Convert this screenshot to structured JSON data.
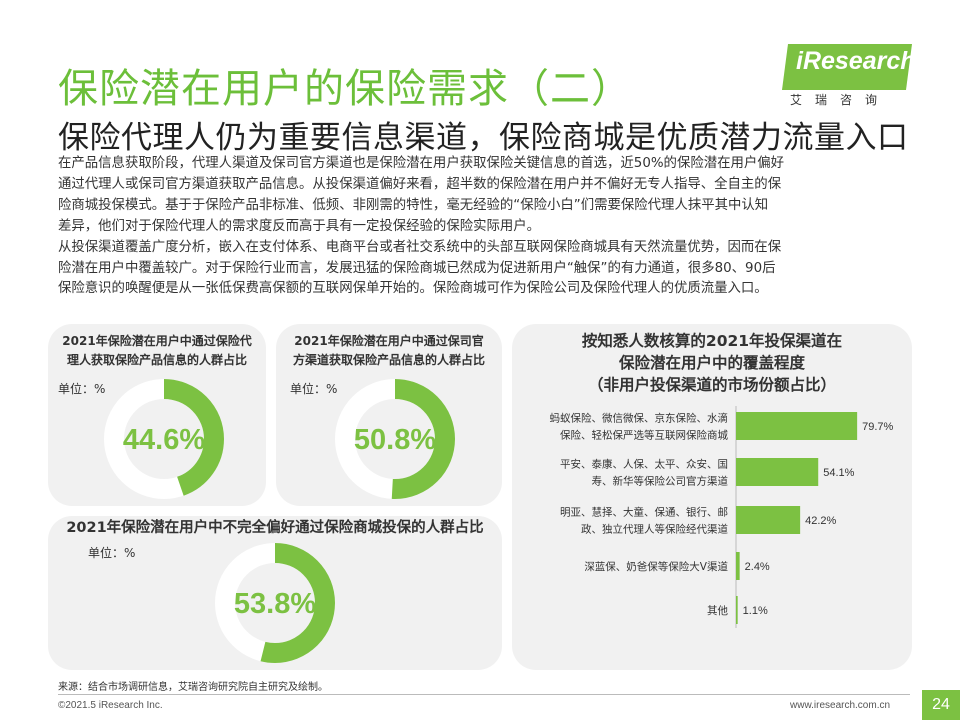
{
  "header": {
    "title": "保险潜在用户的保险需求（二）",
    "subtitle": "保险代理人仍为重要信息渠道，保险商城是优质潜力流量入口"
  },
  "logo": {
    "text": "iResearch",
    "cn": "艾瑞咨询"
  },
  "body": {
    "lines": [
      "在产品信息获取阶段，代理人渠道及保司官方渠道也是保险潜在用户获取保险关键信息的首选，近50%的保险潜在用户偏好",
      "通过代理人或保司官方渠道获取产品信息。从投保渠道偏好来看，超半数的保险潜在用户并不偏好无专人指导、全自主的保",
      "险商城投保模式。基于于保险产品非标准、低频、非刚需的特性，毫无经验的“保险小白”们需要保险代理人抹平其中认知",
      "差异，他们对于保险代理人的需求度反而高于具有一定投保经验的保险实际用户。",
      "从投保渠道覆盖广度分析，嵌入在支付体系、电商平台或者社交系统中的头部互联网保险商城具有天然流量优势，因而在保",
      "险潜在用户中覆盖较广。对于保险行业而言，发展迅猛的保险商城已然成为促进新用户“触保”的有力通道，很多80、90后",
      "保险意识的唤醒便是从一张低保费高保额的互联网保单开始的。保险商城可作为保险公司及保险代理人的优质流量入口。"
    ]
  },
  "donuts": [
    {
      "title_lines": [
        "2021年保险潜在用户中通过保险代",
        "理人获取保险产品信息的人群占比"
      ],
      "unit": "单位：%",
      "value": 44.6,
      "label": "44.6%"
    },
    {
      "title_lines": [
        "2021年保险潜在用户中通过保司官",
        "方渠道获取保险产品信息的人群占比"
      ],
      "unit": "单位：%",
      "value": 50.8,
      "label": "50.8%"
    },
    {
      "title_lines": [
        "2021年保险潜在用户中不完全偏好通过保险商城投保的人群占比"
      ],
      "unit": "单位：%",
      "value": 53.8,
      "label": "53.8%"
    }
  ],
  "chart_data": {
    "type": "bar",
    "orientation": "horizontal",
    "title": [
      "按知悉人数核算的2021年投保渠道在",
      "保险潜在用户中的覆盖程度",
      "（非用户投保渠道的市场份额占比）"
    ],
    "categories": [
      [
        "蚂蚁保险、微信微保、京东保险、水滴",
        "保险、轻松保严选等互联网保险商城"
      ],
      [
        "平安、泰康、人保、太平、众安、国",
        "寿、新华等保险公司官方渠道"
      ],
      [
        "明亚、慧择、大童、保通、银行、邮",
        "政、独立代理人等保险经代渠道"
      ],
      [
        "深蓝保、奶爸保等保险大V渠道"
      ],
      [
        "其他"
      ]
    ],
    "values": [
      79.7,
      54.1,
      42.2,
      2.4,
      1.1
    ],
    "value_labels": [
      "79.7%",
      "54.1%",
      "42.2%",
      "2.4%",
      "1.1%"
    ],
    "xlim": [
      0,
      100
    ],
    "bar_color": "#7cc142"
  },
  "colors": {
    "accent": "#7cc142",
    "title_green": "#6cbf3a",
    "donut_track": "#f1f1f1",
    "panel_bg": "#f1f1f1"
  },
  "footer": {
    "source": "来源：结合市场调研信息，艾瑞咨询研究院自主研究及绘制。",
    "copyright": "©2021.5 iResearch Inc.",
    "website": "www.iresearch.com.cn",
    "page": "24"
  }
}
